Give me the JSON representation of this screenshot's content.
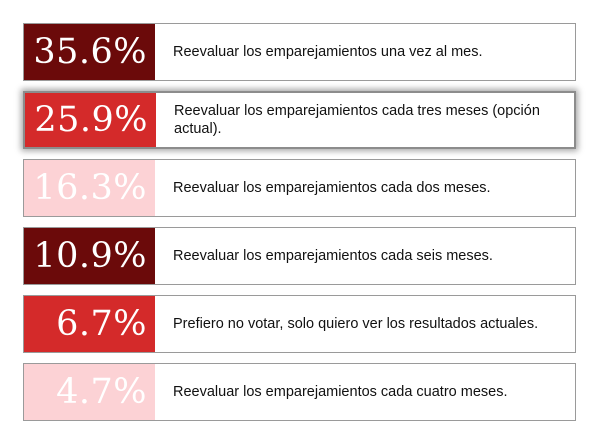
{
  "poll": {
    "options": [
      {
        "percent": "35.6%",
        "value": 35.6,
        "label": "Reevaluar los emparejamientos una vez al mes.",
        "color": "#6b0a0a",
        "selected": false
      },
      {
        "percent": "25.9%",
        "value": 25.9,
        "label": "Reevaluar los emparejamientos cada tres meses (opción actual).",
        "color": "#d42a2a",
        "selected": true
      },
      {
        "percent": "16.3%",
        "value": 16.3,
        "label": "Reevaluar los emparejamientos cada dos meses.",
        "color": "#fcd2d5",
        "selected": false
      },
      {
        "percent": "10.9%",
        "value": 10.9,
        "label": "Reevaluar los emparejamientos cada seis meses.",
        "color": "#6b0a0a",
        "selected": false
      },
      {
        "percent": "6.7%",
        "value": 6.7,
        "label": "Prefiero no votar, solo quiero ver los resultados actuales.",
        "color": "#d42a2a",
        "selected": false
      },
      {
        "percent": "4.7%",
        "value": 4.7,
        "label": "Reevaluar los emparejamientos cada cuatro meses.",
        "color": "#fcd2d5",
        "selected": false
      }
    ]
  }
}
